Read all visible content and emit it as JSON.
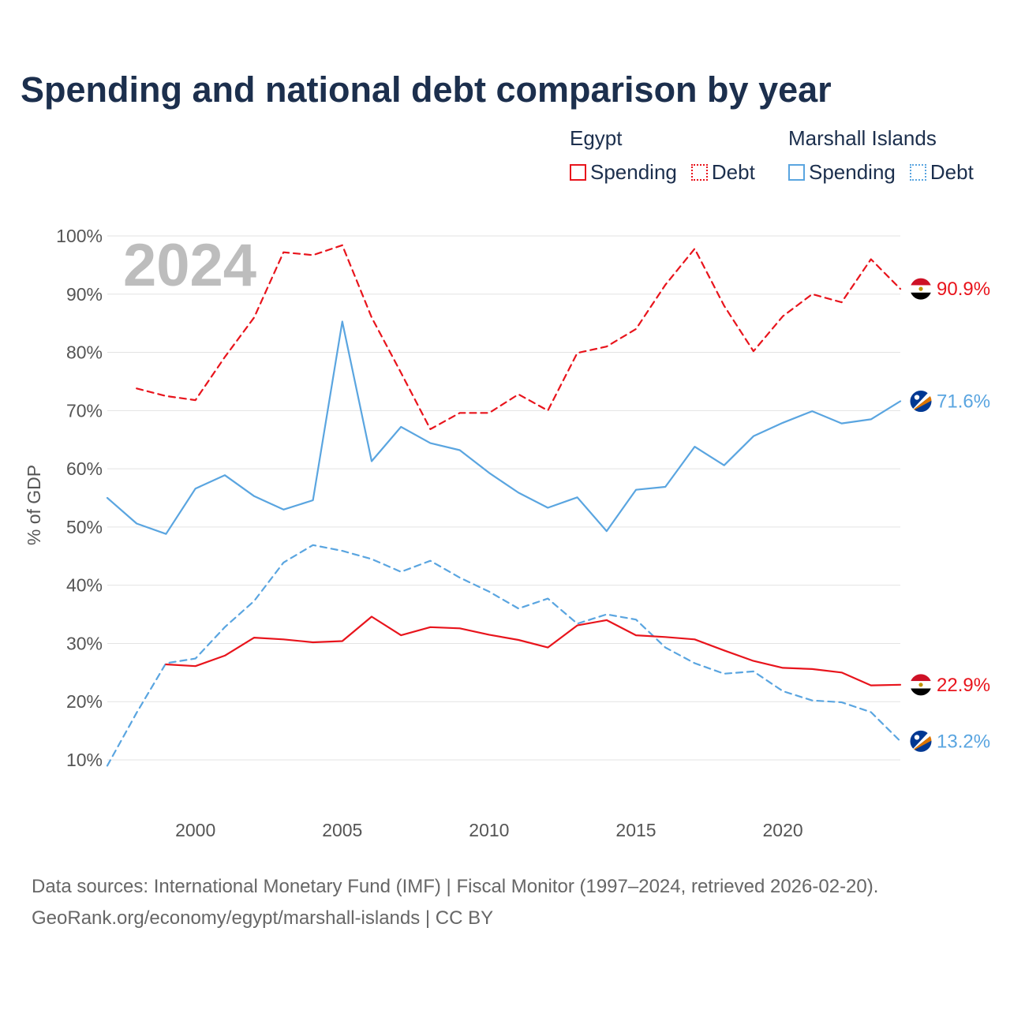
{
  "chart_data": {
    "type": "line",
    "title": "Spending and national debt comparison by year",
    "ylabel": "% of GDP",
    "xlabel": "",
    "year_label": "2024",
    "xlim": [
      1997,
      2024
    ],
    "ylim": [
      10,
      100
    ],
    "x_ticks": [
      2000,
      2005,
      2010,
      2015,
      2020
    ],
    "y_ticks": [
      10,
      20,
      30,
      40,
      50,
      60,
      70,
      80,
      90,
      100
    ],
    "y_tick_labels": [
      "10%",
      "20%",
      "30%",
      "40%",
      "50%",
      "60%",
      "70%",
      "80%",
      "90%",
      "100%"
    ],
    "grid": true,
    "countries": [
      {
        "name": "Egypt",
        "color": "#e8141c",
        "flag": "egypt-flag-icon"
      },
      {
        "name": "Marshall Islands",
        "color": "#5aa5e0",
        "flag": "marshall-islands-flag-icon"
      }
    ],
    "series": [
      {
        "name": "Egypt Debt",
        "country": "Egypt",
        "metric": "Debt",
        "color": "#e8141c",
        "dashed": true,
        "end_label": "90.9%",
        "flag": "egypt-flag-icon",
        "x": [
          1998,
          1999,
          2000,
          2001,
          2002,
          2003,
          2004,
          2005,
          2006,
          2007,
          2008,
          2009,
          2010,
          2011,
          2012,
          2013,
          2014,
          2015,
          2016,
          2017,
          2018,
          2019,
          2020,
          2021,
          2022,
          2023,
          2024
        ],
        "values": [
          73.8,
          72.5,
          71.8,
          79.2,
          86.0,
          97.2,
          96.7,
          98.4,
          86.0,
          76.5,
          66.8,
          69.6,
          69.6,
          72.8,
          70.0,
          79.9,
          81.0,
          84.0,
          91.6,
          97.8,
          88.0,
          80.2,
          86.2,
          90.0,
          88.6,
          96.0,
          90.9
        ]
      },
      {
        "name": "Marshall Islands Spending",
        "country": "Marshall Islands",
        "metric": "Spending",
        "color": "#5aa5e0",
        "dashed": false,
        "end_label": "71.6%",
        "flag": "marshall-islands-flag-icon",
        "x": [
          1997,
          1998,
          1999,
          2000,
          2001,
          2002,
          2003,
          2004,
          2005,
          2006,
          2007,
          2008,
          2009,
          2010,
          2011,
          2012,
          2013,
          2014,
          2015,
          2016,
          2017,
          2018,
          2019,
          2020,
          2021,
          2022,
          2023,
          2024
        ],
        "values": [
          55.0,
          50.6,
          48.8,
          56.6,
          58.9,
          55.3,
          53.0,
          54.6,
          85.3,
          61.3,
          67.2,
          64.4,
          63.2,
          59.3,
          55.9,
          53.3,
          55.1,
          49.3,
          56.4,
          56.9,
          63.8,
          60.6,
          65.6,
          67.9,
          69.9,
          67.8,
          68.5,
          71.6
        ]
      },
      {
        "name": "Marshall Islands Debt",
        "country": "Marshall Islands",
        "metric": "Debt",
        "color": "#5aa5e0",
        "dashed": true,
        "end_label": "13.2%",
        "flag": "marshall-islands-flag-icon",
        "x": [
          1997,
          1998,
          1999,
          2000,
          2001,
          2002,
          2003,
          2004,
          2005,
          2006,
          2007,
          2008,
          2009,
          2010,
          2011,
          2012,
          2013,
          2014,
          2015,
          2016,
          2017,
          2018,
          2019,
          2020,
          2021,
          2022,
          2023,
          2024
        ],
        "values": [
          9.0,
          18.1,
          26.6,
          27.4,
          32.8,
          37.3,
          43.9,
          46.9,
          45.9,
          44.5,
          42.3,
          44.2,
          41.3,
          38.9,
          36.0,
          37.7,
          33.4,
          35.0,
          34.1,
          29.3,
          26.6,
          24.8,
          25.2,
          21.8,
          20.2,
          19.9,
          18.2,
          13.2
        ]
      },
      {
        "name": "Egypt Spending",
        "country": "Egypt",
        "metric": "Spending",
        "color": "#e8141c",
        "dashed": false,
        "end_label": "22.9%",
        "flag": "egypt-flag-icon",
        "x": [
          1999,
          2000,
          2001,
          2002,
          2003,
          2004,
          2005,
          2006,
          2007,
          2008,
          2009,
          2010,
          2011,
          2012,
          2013,
          2014,
          2015,
          2016,
          2017,
          2018,
          2019,
          2020,
          2021,
          2022,
          2023,
          2024
        ],
        "values": [
          26.4,
          26.1,
          27.9,
          31.0,
          30.7,
          30.2,
          30.4,
          34.6,
          31.4,
          32.8,
          32.6,
          31.5,
          30.6,
          29.3,
          33.1,
          34.0,
          31.4,
          31.1,
          30.7,
          28.8,
          27.0,
          25.8,
          25.6,
          25.0,
          22.8,
          22.9
        ]
      }
    ]
  },
  "legend": {
    "groups": [
      {
        "country": "Egypt",
        "spending_label": "Spending",
        "debt_label": "Debt",
        "color": "#e8141c"
      },
      {
        "country": "Marshall Islands",
        "spending_label": "Spending",
        "debt_label": "Debt",
        "color": "#5aa5e0"
      }
    ]
  },
  "footer": {
    "source_line": "Data sources: International Monetary Fund (IMF) | Fiscal Monitor (1997–2024, retrieved 2026-02-20).",
    "url_line": "GeoRank.org/economy/egypt/marshall-islands | CC BY"
  }
}
